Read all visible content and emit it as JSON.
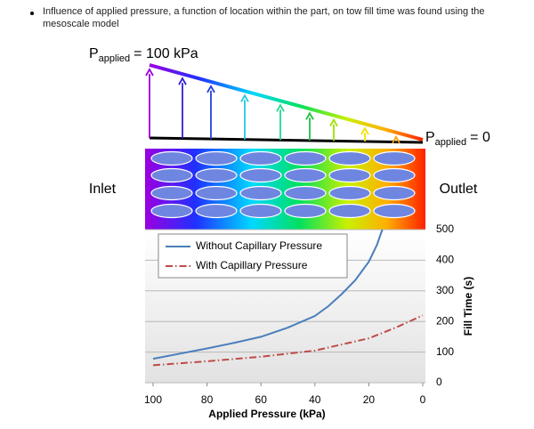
{
  "bullet": "Influence of applied pressure, a function of location within the part, on tow fill time was found using the mesoscale model",
  "diagram": {
    "p_symbol": "P",
    "p_subscript": "applied",
    "inlet_pressure": "= 100 kPa",
    "outlet_pressure": "= 0",
    "inlet_label": "Inlet",
    "outlet_label": "Outlet"
  },
  "chart_data": {
    "type": "line",
    "x_label": "Applied Pressure (kPa)",
    "y_label": "Fill Time (s)",
    "xlim": [
      100,
      0
    ],
    "xticks": [
      100,
      80,
      60,
      40,
      20,
      0
    ],
    "ylim": [
      0,
      500
    ],
    "yticks": [
      0,
      100,
      200,
      300,
      400,
      500
    ],
    "grid": true,
    "legend": "upper left",
    "series": [
      {
        "name": "Without Capillary Pressure",
        "color": "#4a7ebb",
        "style": "solid",
        "x": [
          100,
          90,
          80,
          70,
          60,
          50,
          40,
          35,
          30,
          25,
          20,
          17,
          15
        ],
        "values": [
          78,
          95,
          112,
          130,
          150,
          180,
          218,
          250,
          290,
          335,
          395,
          450,
          500
        ]
      },
      {
        "name": "With Capillary Pressure",
        "color": "#be4b48",
        "style": "dashdot",
        "x": [
          100,
          80,
          60,
          40,
          20,
          10,
          0
        ],
        "values": [
          57,
          70,
          85,
          105,
          145,
          180,
          220
        ]
      }
    ]
  }
}
